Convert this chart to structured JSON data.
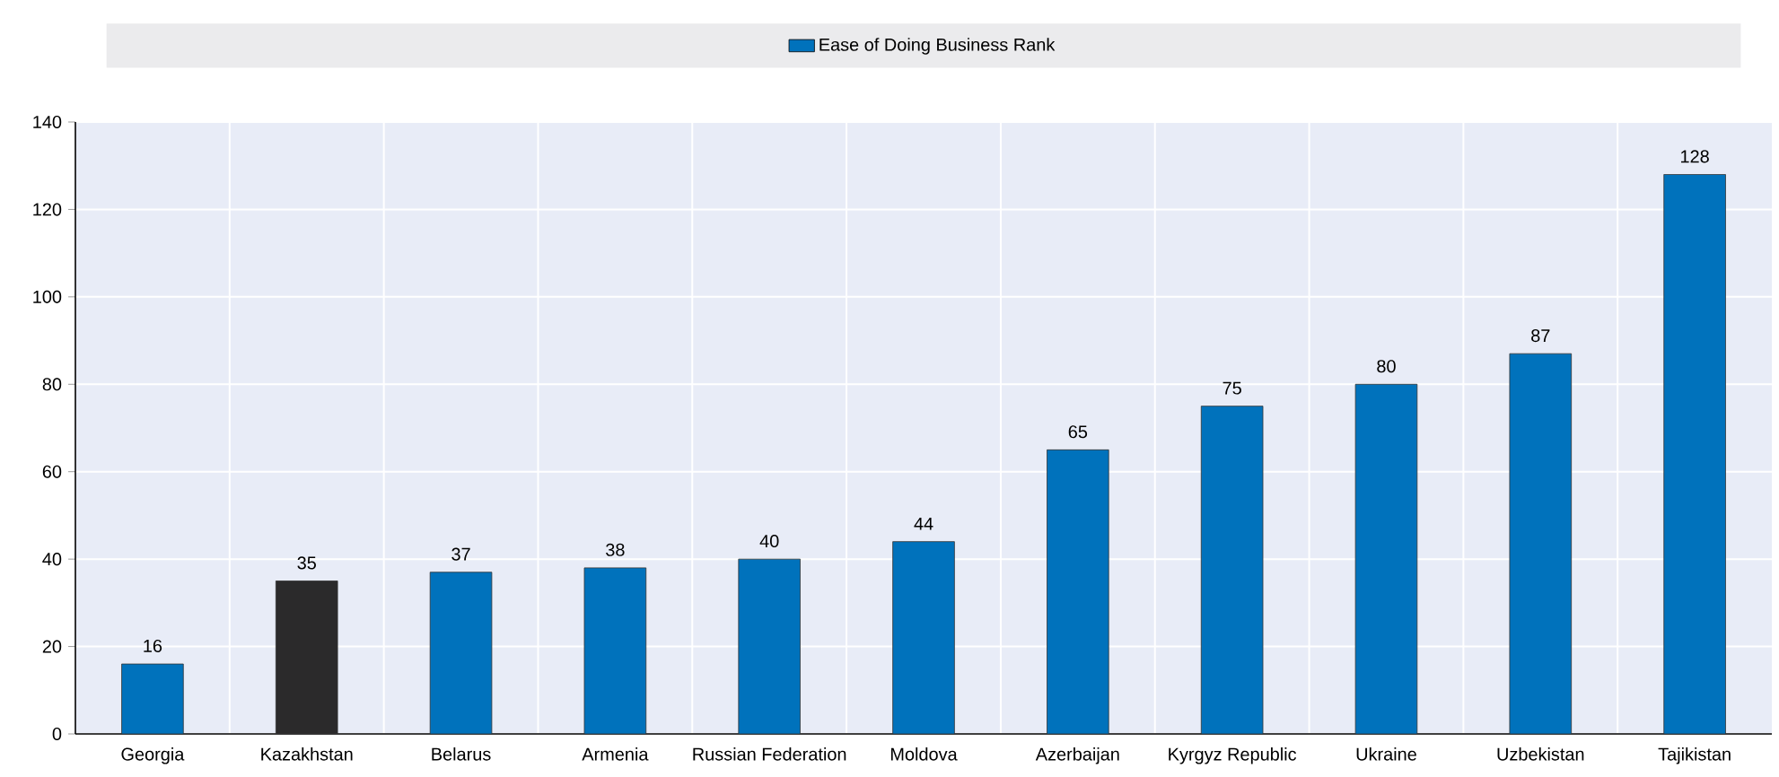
{
  "chart_data": {
    "type": "bar",
    "categories": [
      "Georgia",
      "Kazakhstan",
      "Belarus",
      "Armenia",
      "Russian Federation",
      "Moldova",
      "Azerbaijan",
      "Kyrgyz Republic",
      "Ukraine",
      "Uzbekistan",
      "Tajikistan"
    ],
    "series": [
      {
        "name": "Ease of Doing Business Rank",
        "color": "#0072bc",
        "colors": [
          "#0072bc",
          "#2b2a2b",
          "#0072bc",
          "#0072bc",
          "#0072bc",
          "#0072bc",
          "#0072bc",
          "#0072bc",
          "#0072bc",
          "#0072bc",
          "#0072bc"
        ],
        "values": [
          16,
          35,
          37,
          38,
          40,
          44,
          65,
          75,
          80,
          87,
          128
        ]
      }
    ],
    "ylim": [
      0,
      140
    ],
    "yticks": [
      0,
      20,
      40,
      60,
      80,
      100,
      120,
      140
    ],
    "grid": true,
    "legend": "top",
    "data_labels": true
  }
}
